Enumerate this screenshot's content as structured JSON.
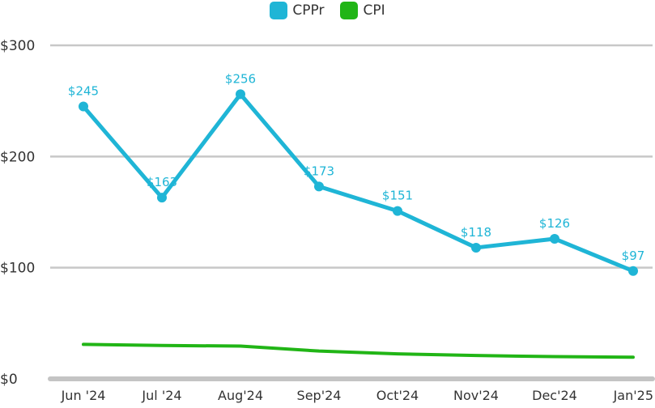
{
  "chart_data": {
    "type": "line",
    "categories": [
      "Jun '24",
      "Jul '24",
      "Aug'24",
      "Sep'24",
      "Oct'24",
      "Nov'24",
      "Dec'24",
      "Jan'25"
    ],
    "series": [
      {
        "name": "CPPr",
        "color": "#1fb5d6",
        "values": [
          245,
          163,
          256,
          173,
          151,
          118,
          126,
          97
        ],
        "data_labels": [
          "$245",
          "$163",
          "$256",
          "$173",
          "$151",
          "$118",
          "$126",
          "$97"
        ],
        "markers": true
      },
      {
        "name": "CPI",
        "color": "#21b516",
        "values": [
          31,
          30,
          29.5,
          25,
          22.5,
          21,
          20,
          19.5
        ],
        "markers": false
      }
    ],
    "yticks": [
      0,
      100,
      200,
      300
    ],
    "ytick_labels": [
      "$0",
      "$100",
      "$200",
      "$300"
    ],
    "ylim": [
      0,
      300
    ],
    "grid": true,
    "legend_position": "top-center"
  }
}
